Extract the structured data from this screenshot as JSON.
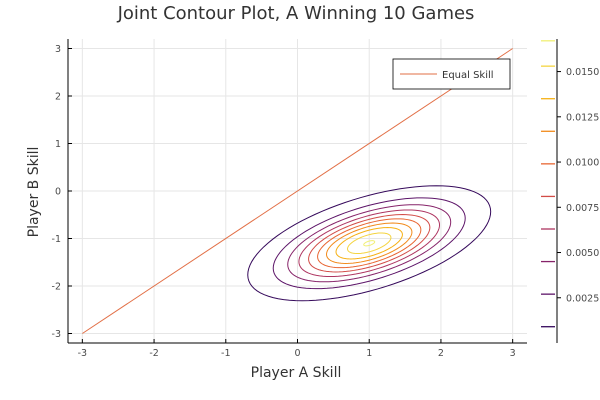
{
  "chart_data": {
    "type": "contour",
    "title": "Joint Contour Plot, A Winning 10 Games",
    "xlabel": "Player A Skill",
    "ylabel": "Player B Skill",
    "xlim": [
      -3.2,
      3.2
    ],
    "ylim": [
      -3.2,
      3.2
    ],
    "xticks": [
      -3,
      -2,
      -1,
      0,
      1,
      2,
      3
    ],
    "yticks": [
      -3,
      -2,
      -1,
      0,
      1,
      2,
      3
    ],
    "grid": true,
    "legend": {
      "position": "top-right",
      "entries": [
        "Equal Skill"
      ]
    },
    "line": {
      "name": "Equal Skill",
      "x": [
        -3,
        3
      ],
      "y": [
        -3,
        3
      ],
      "color": "#e26f46"
    },
    "contour": {
      "center": [
        1.0,
        -1.1
      ],
      "levels": [
        0.0009,
        0.0027,
        0.0045,
        0.0063,
        0.0081,
        0.0099,
        0.0117,
        0.0135,
        0.0153,
        0.0167
      ],
      "colors": [
        "#35095b",
        "#5c1468",
        "#862369",
        "#ae3561",
        "#d24c47",
        "#e86531",
        "#f18a1b",
        "#f6b115",
        "#f4d440",
        "#f1ef75"
      ],
      "peak_density": 0.0168
    },
    "colorbar": {
      "tick_labels": [
        "0.0025",
        "0.0050",
        "0.0075",
        "0.0100",
        "0.0125",
        "0.0150"
      ],
      "tick_values": [
        0.0025,
        0.005,
        0.0075,
        0.01,
        0.0125,
        0.015
      ],
      "range": [
        0.0,
        0.0168
      ]
    }
  }
}
